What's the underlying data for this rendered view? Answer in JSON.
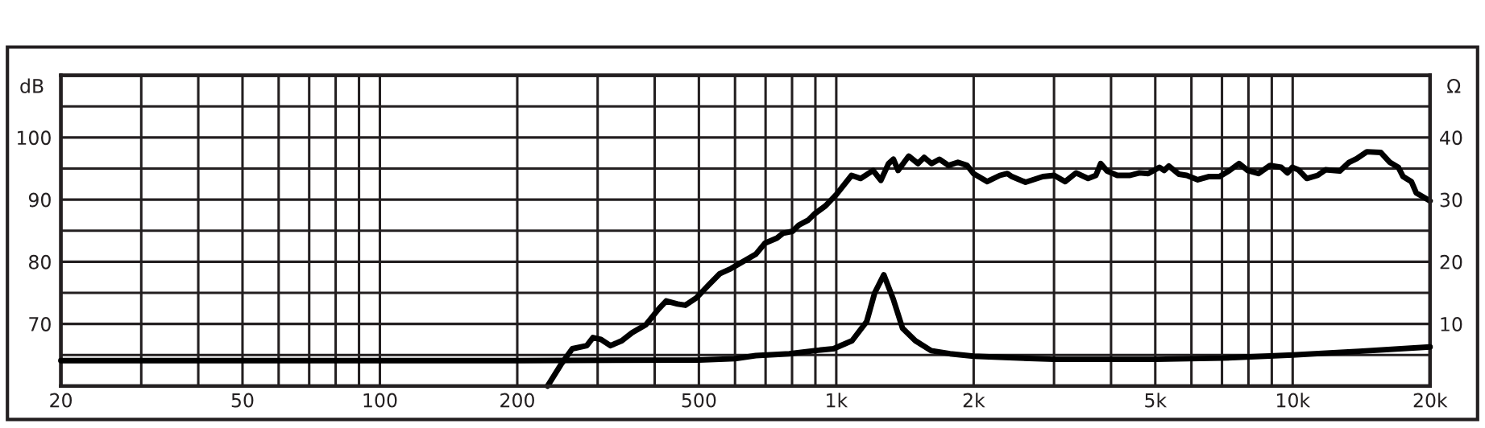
{
  "chart_data": {
    "type": "line",
    "ylabel": "dB",
    "y2label": "Ω",
    "log": "x",
    "grid": true,
    "line_style": "solid",
    "marker": "none",
    "xlim": [
      20,
      20000
    ],
    "xticks": [
      20,
      {
        "value": 30,
        "label": null
      },
      {
        "value": 40,
        "label": null
      },
      50,
      {
        "value": 60,
        "label": null
      },
      {
        "value": 70,
        "label": null
      },
      {
        "value": 80,
        "label": null
      },
      {
        "value": 90,
        "label": null
      },
      100,
      200,
      {
        "value": 300,
        "label": null
      },
      {
        "value": 400,
        "label": null
      },
      500,
      {
        "value": 600,
        "label": null
      },
      {
        "value": 700,
        "label": null
      },
      {
        "value": 800,
        "label": null
      },
      {
        "value": 900,
        "label": null
      },
      {
        "value": 1000,
        "label": "1k"
      },
      {
        "value": 2000,
        "label": "2k"
      },
      {
        "value": 3000,
        "label": null
      },
      {
        "value": 4000,
        "label": null
      },
      {
        "value": 5000,
        "label": "5k"
      },
      {
        "value": 6000,
        "label": null
      },
      {
        "value": 7000,
        "label": null
      },
      {
        "value": 8000,
        "label": null
      },
      {
        "value": 9000,
        "label": null
      },
      {
        "value": 10000,
        "label": "10k"
      },
      {
        "value": 20000,
        "label": "20k"
      }
    ],
    "ylim": [
      60,
      110
    ],
    "yticks": [
      {
        "value": 65,
        "label": null
      },
      70,
      {
        "value": 75,
        "label": null
      },
      80,
      {
        "value": 85,
        "label": null
      },
      90,
      {
        "value": 95,
        "label": null
      },
      100,
      {
        "value": 105,
        "label": null
      }
    ],
    "y2lim": [
      0,
      50
    ],
    "y2ticks": [
      10,
      20,
      30,
      40
    ],
    "series": [
      {
        "color": "#000000",
        "x": [
          233,
          249,
          264,
          284,
          293,
          305,
          320,
          339,
          357,
          383,
          408,
          424,
          449,
          467,
          494,
          526,
          556,
          588,
          666,
          698,
          741,
          765,
          802,
          828,
          868,
          896,
          947,
          1000,
          1080,
          1131,
          1204,
          1252,
          1302,
          1334,
          1366,
          1441,
          1510,
          1558,
          1618,
          1682,
          1762,
          1847,
          1935,
          1998,
          2142,
          2283,
          2370,
          2427,
          2598,
          2835,
          3003,
          3173,
          3353,
          3563,
          3705,
          3796,
          3920,
          4128,
          4402,
          4615,
          4824,
          5104,
          5228,
          5355,
          5634,
          5860,
          6196,
          6542,
          6910,
          7280,
          7630,
          7965,
          8418,
          8920,
          9440,
          9740,
          9980,
          10290,
          10740,
          11340,
          11800,
          12680,
          13290,
          13820,
          14540,
          15590,
          16330,
          17040,
          17460,
          18200,
          18650,
          20000
        ],
        "values": [
          60,
          63.4,
          66,
          66.5,
          67.8,
          67.5,
          66.5,
          67.3,
          68.6,
          69.9,
          72.4,
          73.7,
          73.2,
          73,
          74.2,
          76.3,
          78.1,
          78.9,
          81.2,
          83,
          83.8,
          84.6,
          84.9,
          85.9,
          86.7,
          87.7,
          89,
          90.8,
          93.9,
          93.4,
          94.7,
          93.1,
          95.8,
          96.5,
          94.7,
          97,
          95.8,
          96.8,
          95.8,
          96.5,
          95.5,
          96,
          95.5,
          94.2,
          92.9,
          93.9,
          94.2,
          93.7,
          92.8,
          93.7,
          93.9,
          92.9,
          94.3,
          93.4,
          93.9,
          95.8,
          94.6,
          93.9,
          93.9,
          94.3,
          94.2,
          95.2,
          94.7,
          95.4,
          94.1,
          93.9,
          93.2,
          93.7,
          93.7,
          94.7,
          95.8,
          94.7,
          94.2,
          95.5,
          95.2,
          94.3,
          95.2,
          94.8,
          93.4,
          93.9,
          94.8,
          94.6,
          96,
          96.6,
          97.7,
          97.6,
          96,
          95.2,
          93.7,
          92.9,
          91.1,
          89.8
        ]
      },
      {
        "color": "#000000",
        "axis": "y2",
        "x": [
          20,
          100,
          200,
          500,
          600,
          666,
          789,
          896,
          986,
          1083,
          1166,
          1214,
          1271,
          1333,
          1397,
          1490,
          1614,
          1775,
          2000,
          3000,
          5000,
          7000,
          10000,
          14000,
          20000
        ],
        "values": [
          4.1,
          4.1,
          4.1,
          4.2,
          4.4,
          4.9,
          5.2,
          5.7,
          6,
          7.3,
          10.4,
          15,
          17.9,
          14,
          9.3,
          7.3,
          5.7,
          5.2,
          4.8,
          4.3,
          4.3,
          4.5,
          5,
          5.6,
          6.3
        ]
      }
    ]
  }
}
